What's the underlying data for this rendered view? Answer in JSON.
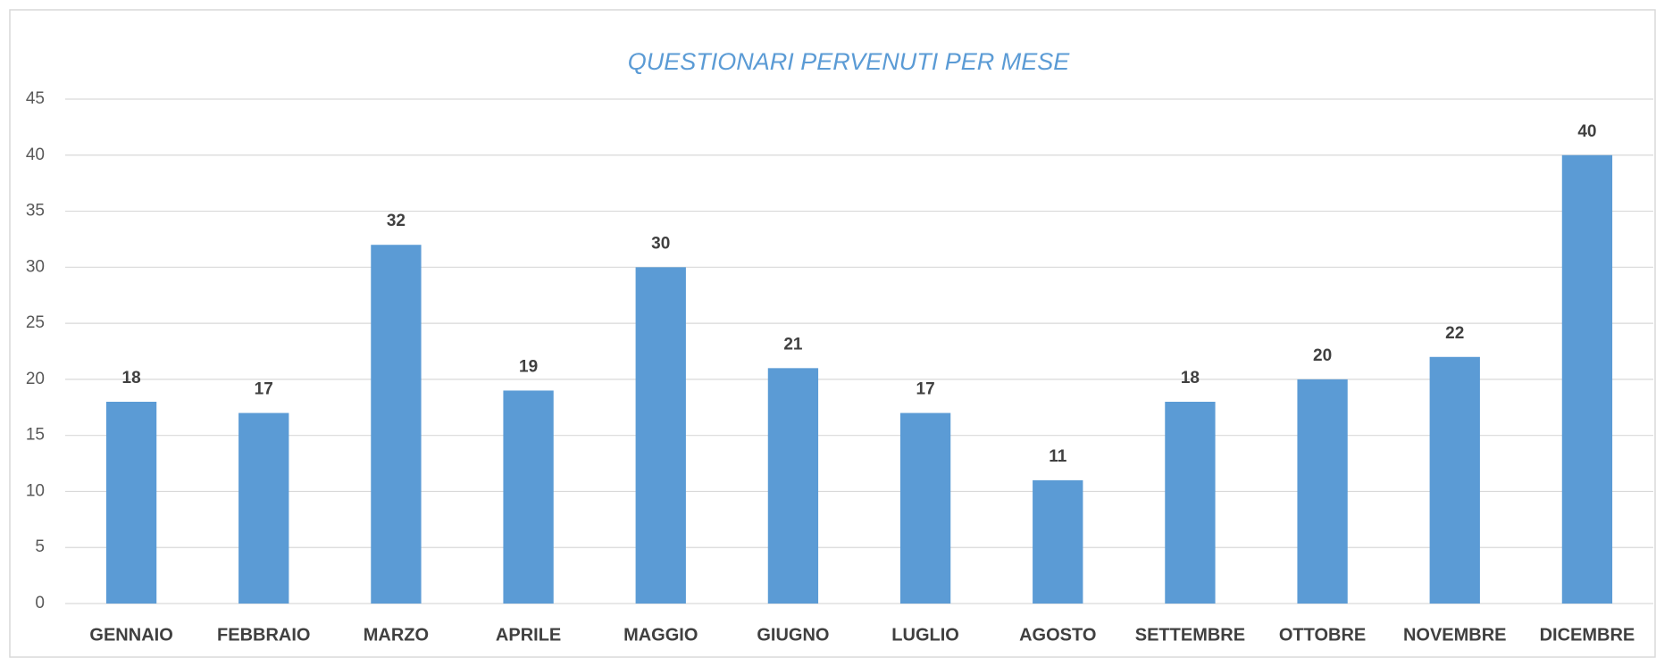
{
  "chart_data": {
    "type": "bar",
    "title": "QUESTIONARI PERVENUTI PER MESE",
    "categories": [
      "GENNAIO",
      "FEBBRAIO",
      "MARZO",
      "APRILE",
      "MAGGIO",
      "GIUGNO",
      "LUGLIO",
      "AGOSTO",
      "SETTEMBRE",
      "OTTOBRE",
      "NOVEMBRE",
      "DICEMBRE"
    ],
    "values": [
      18,
      17,
      32,
      19,
      30,
      21,
      17,
      11,
      18,
      20,
      22,
      40
    ],
    "color": "#5b9bd5",
    "ylim": [
      0,
      45
    ],
    "yticks": [
      0,
      5,
      10,
      15,
      20,
      25,
      30,
      35,
      40,
      45
    ],
    "grid": true
  }
}
